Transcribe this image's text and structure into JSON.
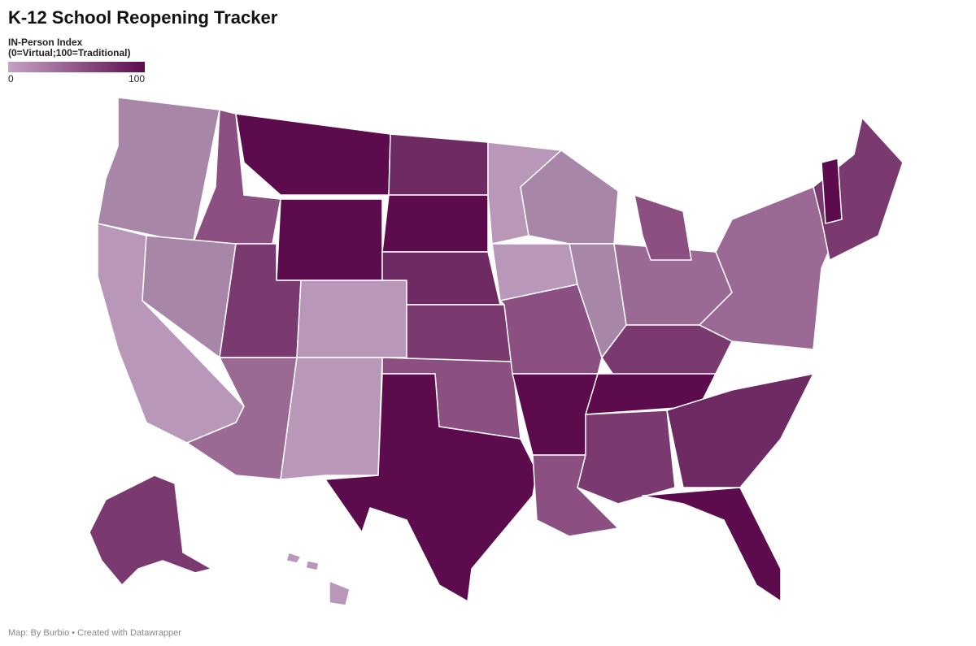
{
  "header": {
    "title": "K-12 School Reopening Tracker"
  },
  "legend": {
    "title": "IN-Person Index",
    "subtitle": "(0=Virtual;100=Traditional)",
    "min": 0,
    "max": 100,
    "colors": [
      "#c4a3c4",
      "#5c0b4c"
    ]
  },
  "footer": {
    "credit": "Map: By Burbio • Created with Datawrapper"
  }
}
